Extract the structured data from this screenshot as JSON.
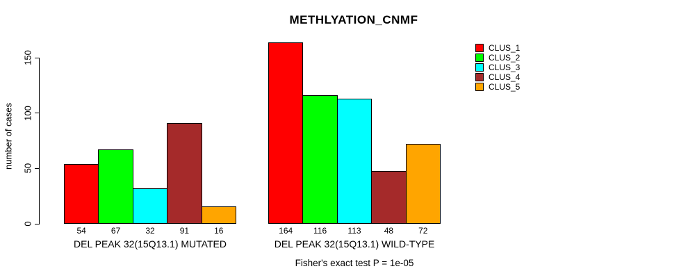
{
  "chart_data": {
    "type": "bar",
    "title": "METHLYATION_CNMF",
    "ylabel": "number of cases",
    "xlabel": "",
    "annotation": "Fisher's exact test P = 1e-05",
    "categories": [
      "DEL PEAK 32(15Q13.1) MUTATED",
      "DEL PEAK 32(15Q13.1) WILD-TYPE"
    ],
    "series": [
      {
        "name": "CLUS_1",
        "color": "#ff0000",
        "values": [
          54,
          164
        ]
      },
      {
        "name": "CLUS_2",
        "color": "#00ff00",
        "values": [
          67,
          116
        ]
      },
      {
        "name": "CLUS_3",
        "color": "#00ffff",
        "values": [
          32,
          113
        ]
      },
      {
        "name": "CLUS_4",
        "color": "#a52a2a",
        "values": [
          91,
          48
        ]
      },
      {
        "name": "CLUS_5",
        "color": "#ffa500",
        "values": [
          16,
          72
        ]
      }
    ],
    "value_labels_shown": true,
    "yticks": [
      0,
      50,
      100,
      150
    ],
    "ylim": [
      0,
      170
    ],
    "grid": false,
    "legend_position": "top-right",
    "bar_border_color": "#000000",
    "background_color": "#ffffff"
  }
}
